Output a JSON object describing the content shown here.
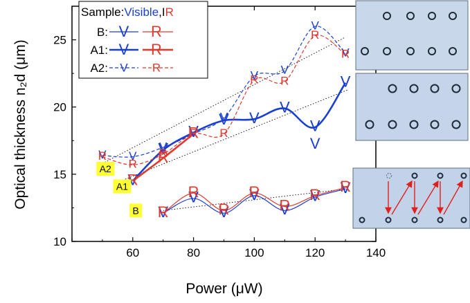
{
  "chart_data": {
    "type": "line",
    "xlabel": "Power (μW)",
    "ylabel": "Optical thickness n₂d (μm)",
    "xlim": [
      40,
      140
    ],
    "ylim": [
      10,
      27.5
    ],
    "x_ticks": [
      "60",
      "80",
      "100",
      "120",
      "140"
    ],
    "y_ticks": [
      "10",
      "15",
      "20",
      "25"
    ],
    "legend": {
      "placement": "top-left",
      "title_prefix": "Sample:",
      "title_visible": "Visible",
      "title_sep": ",",
      "title_ir": "IR",
      "rows": [
        {
          "label": "B:",
          "style": "thin-solid",
          "visible_marker": "V",
          "ir_marker": "R"
        },
        {
          "label": "A1:",
          "style": "thick-solid",
          "visible_marker": "V",
          "ir_marker": "R"
        },
        {
          "label": "A2:",
          "style": "dashed",
          "visible_marker": "V",
          "ir_marker": "R"
        }
      ]
    },
    "series": [
      {
        "sample": "B",
        "band": "Visible",
        "marker": "V",
        "color": "#1a3fd0",
        "style": "thin-solid",
        "x": [
          70,
          80,
          90,
          100,
          110,
          120,
          130
        ],
        "y": [
          12.1,
          13.2,
          12.1,
          13.4,
          12.3,
          13.3,
          13.9
        ]
      },
      {
        "sample": "B",
        "band": "IR",
        "marker": "R",
        "color": "#e0392e",
        "style": "thin-solid",
        "x": [
          70,
          80,
          90,
          100,
          110,
          120,
          130
        ],
        "y": [
          12.1,
          13.6,
          12.3,
          13.6,
          12.6,
          13.4,
          14.0
        ]
      },
      {
        "sample": "A1",
        "band": "Visible",
        "marker": "V",
        "color": "#1a3fd0",
        "style": "thick-solid",
        "x": [
          60,
          70,
          80,
          90,
          100,
          110,
          120,
          130
        ],
        "y": [
          14.5,
          16.8,
          18.1,
          19.0,
          19.1,
          19.9,
          18.5,
          21.8
        ]
      },
      {
        "sample": "A1",
        "band": "IR",
        "marker": "R",
        "color": "#e0392e",
        "style": "thick-solid",
        "x": [
          60,
          70,
          80
        ],
        "y": [
          14.5,
          16.2,
          18.0
        ]
      },
      {
        "sample": "A2",
        "band": "Visible",
        "marker": "V",
        "color": "#1a3fd0",
        "style": "dashed",
        "x": [
          50,
          60,
          70,
          80,
          90,
          100,
          110,
          120,
          130
        ],
        "y": [
          16.4,
          16.3,
          17.0,
          18.0,
          19.2,
          22.3,
          22.7,
          26.0,
          24.0
        ]
      },
      {
        "sample": "A2",
        "band": "IR",
        "marker": "R",
        "color": "#e0392e",
        "style": "dashed",
        "x": [
          50,
          60,
          70,
          80,
          90,
          100,
          110,
          120,
          130
        ],
        "y": [
          16.3,
          15.7,
          16.5,
          18.0,
          18.0,
          22.0,
          21.9,
          25.3,
          23.9
        ]
      }
    ],
    "outlier_points": [
      {
        "marker": "V",
        "color": "#1a3fd0",
        "x": 120,
        "y": 17.2
      }
    ],
    "trend_lines": [
      {
        "for": "A2",
        "x": [
          50,
          130
        ],
        "y": [
          15.8,
          25.2
        ]
      },
      {
        "for": "A1",
        "x": [
          55,
          131
        ],
        "y": [
          14.4,
          21.3
        ]
      },
      {
        "for": "B",
        "x": [
          70,
          130
        ],
        "y": [
          12.3,
          13.9
        ]
      }
    ],
    "curve_tags": [
      {
        "text": "A2",
        "x": 51,
        "y": 15.4
      },
      {
        "text": "A1",
        "x": 56.5,
        "y": 14.1
      },
      {
        "text": "B",
        "x": 61,
        "y": 12.3
      }
    ],
    "colors": {
      "visible": "#1a3fd0",
      "ir": "#e0392e",
      "tag_fill": "#ffff33",
      "trend": "#000000"
    },
    "insets": [
      {
        "name": "sample-a2-micrograph",
        "description_only": true
      },
      {
        "name": "sample-a1-micrograph",
        "description_only": true
      },
      {
        "name": "sample-b-micrograph",
        "description_only": true
      }
    ]
  }
}
